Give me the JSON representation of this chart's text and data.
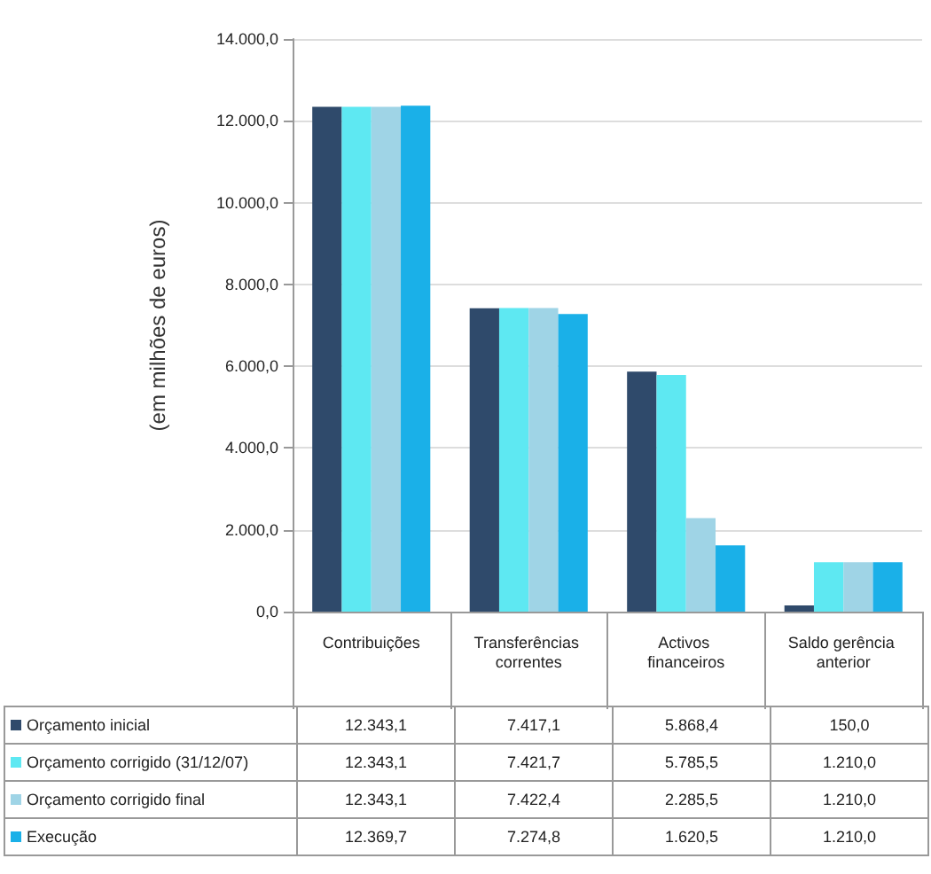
{
  "chart_data": {
    "type": "bar",
    "ylabel": "(em milhões de euros)",
    "categories": [
      "Contribuições",
      "Transferências correntes",
      "Activos financeiros",
      "Saldo gerência anterior"
    ],
    "series": [
      {
        "name": "Orçamento inicial",
        "color": "#2f4a6b",
        "values": [
          12343.1,
          7417.1,
          5868.4,
          150.0
        ],
        "value_labels": [
          "12.343,1",
          "7.417,1",
          "5.868,4",
          "150,0"
        ]
      },
      {
        "name": "Orçamento corrigido (31/12/07)",
        "color": "#5ee8f2",
        "values": [
          12343.1,
          7421.7,
          5785.5,
          1210.0
        ],
        "value_labels": [
          "12.343,1",
          "7.421,7",
          "5.785,5",
          "1.210,0"
        ]
      },
      {
        "name": "Orçamento corrigido final",
        "color": "#9fd4e6",
        "values": [
          12343.1,
          7422.4,
          2285.5,
          1210.0
        ],
        "value_labels": [
          "12.343,1",
          "7.422,4",
          "2.285,5",
          "1.210,0"
        ]
      },
      {
        "name": "Execução",
        "color": "#1ab0e8",
        "values": [
          12369.7,
          7274.8,
          1620.5,
          1210.0
        ],
        "value_labels": [
          "12.369,7",
          "7.274,8",
          "1.620,5",
          "1.210,0"
        ]
      }
    ],
    "ylim": [
      0,
      14000
    ],
    "yticks": [
      {
        "value": 0,
        "label": "0,0"
      },
      {
        "value": 2000,
        "label": "2.000,0"
      },
      {
        "value": 4000,
        "label": "4.000,0"
      },
      {
        "value": 6000,
        "label": "6.000,0"
      },
      {
        "value": 8000,
        "label": "8.000,0"
      },
      {
        "value": 10000,
        "label": "10.000,0"
      },
      {
        "value": 12000,
        "label": "12.000,0"
      },
      {
        "value": 14000,
        "label": "14.000,0"
      }
    ],
    "grid": "y",
    "legend": "bottom"
  }
}
